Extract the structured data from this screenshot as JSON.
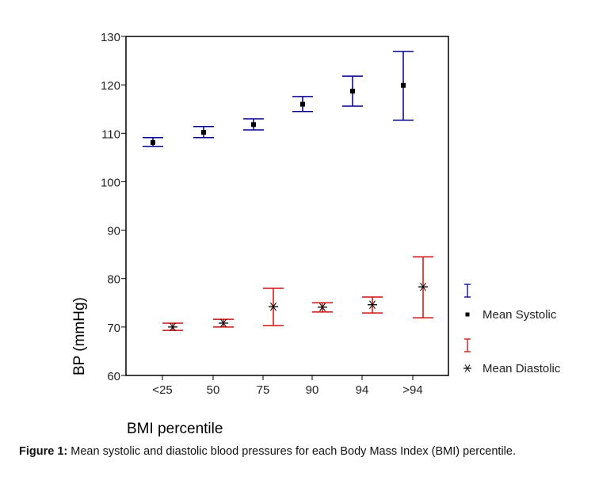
{
  "chart_data": {
    "type": "errorbar",
    "title": "",
    "xlabel": "BMI percentile",
    "ylabel": "BP (mmHg)",
    "ylim": [
      60,
      130
    ],
    "yticks": [
      60,
      70,
      80,
      90,
      100,
      110,
      120,
      130
    ],
    "categories": [
      "<25",
      "50",
      "75",
      "90",
      "94",
      ">94"
    ],
    "grid": false,
    "legend_position": "right",
    "series": [
      {
        "name": "Mean Systolic",
        "color": "#00008b",
        "marker": "square",
        "marker_color": "#000000",
        "mean": [
          108.1,
          110.2,
          111.8,
          116.0,
          118.7,
          119.9
        ],
        "upper": [
          109.1,
          111.4,
          113.0,
          117.6,
          121.8,
          126.9
        ],
        "lower": [
          107.3,
          109.1,
          110.7,
          114.5,
          115.6,
          112.7
        ]
      },
      {
        "name": "Mean Diastolic",
        "color": "#cc1111",
        "marker": "asterisk",
        "marker_color": "#000000",
        "mean": [
          70.0,
          70.8,
          74.2,
          74.1,
          74.6,
          78.3
        ],
        "upper": [
          70.8,
          71.6,
          78.0,
          75.0,
          76.2,
          84.5
        ],
        "lower": [
          69.3,
          70.0,
          70.3,
          73.1,
          72.9,
          71.9
        ]
      }
    ]
  },
  "caption": {
    "label": "Figure 1:",
    "text": " Mean systolic and diastolic blood pressures for each Body Mass Index (BMI) percentile."
  }
}
